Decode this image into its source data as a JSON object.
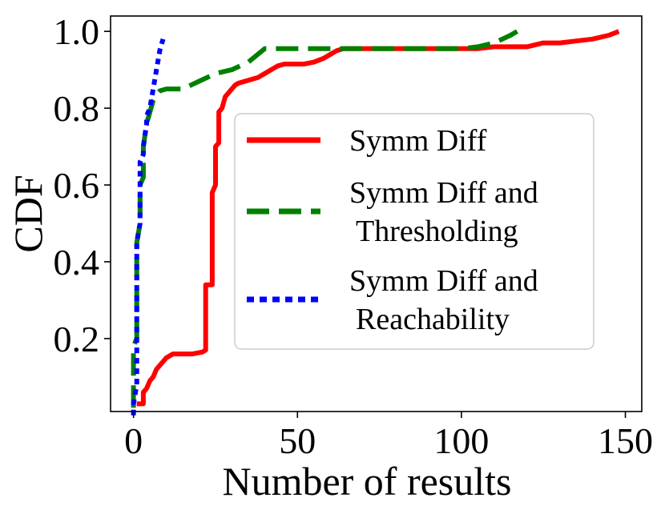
{
  "chart_data": {
    "type": "line",
    "xlabel": "Number of results",
    "ylabel": "CDF",
    "xlim": [
      -7,
      155
    ],
    "ylim": [
      0.01,
      1.04
    ],
    "xticks": [
      0,
      50,
      100,
      150
    ],
    "xtick_labels": [
      "0",
      "50",
      "100",
      "150"
    ],
    "yticks": [
      0.2,
      0.4,
      0.6,
      0.8,
      1.0
    ],
    "ytick_labels": [
      "0.2",
      "0.4",
      "0.6",
      "0.8",
      "1.0"
    ],
    "grid": false,
    "legend_position": "center-right",
    "series": [
      {
        "name": "Symm Diff",
        "color": "#ff0000",
        "style": "solid",
        "x": [
          1,
          3,
          3,
          4,
          5,
          6,
          7,
          8,
          9,
          10,
          11,
          12,
          14,
          18,
          21,
          22,
          22,
          24,
          24,
          25,
          25,
          26,
          26,
          27,
          28,
          29,
          30,
          31,
          32,
          34,
          36,
          38,
          40,
          42,
          44,
          46,
          48,
          50,
          52,
          55,
          58,
          60,
          62,
          64,
          66,
          70,
          80,
          90,
          100,
          105,
          110,
          115,
          120,
          125,
          130,
          135,
          140,
          145,
          148
        ],
        "y": [
          0.03,
          0.03,
          0.06,
          0.07,
          0.09,
          0.1,
          0.12,
          0.13,
          0.14,
          0.15,
          0.155,
          0.16,
          0.16,
          0.16,
          0.165,
          0.17,
          0.34,
          0.34,
          0.58,
          0.6,
          0.7,
          0.71,
          0.79,
          0.8,
          0.83,
          0.84,
          0.85,
          0.86,
          0.865,
          0.87,
          0.875,
          0.88,
          0.89,
          0.9,
          0.91,
          0.915,
          0.915,
          0.915,
          0.915,
          0.92,
          0.93,
          0.94,
          0.95,
          0.955,
          0.955,
          0.955,
          0.955,
          0.955,
          0.955,
          0.955,
          0.96,
          0.96,
          0.96,
          0.97,
          0.97,
          0.975,
          0.98,
          0.99,
          1.0
        ]
      },
      {
        "name": "Symm Diff and\nThresholding",
        "color": "#008000",
        "style": "dashed",
        "x": [
          0,
          0,
          1,
          1,
          2,
          2,
          3,
          3,
          4,
          5,
          6,
          7,
          8,
          10,
          15,
          20,
          25,
          30,
          35,
          40,
          60,
          80,
          100,
          105,
          110,
          115,
          117
        ],
        "y": [
          0.02,
          0.18,
          0.2,
          0.45,
          0.5,
          0.6,
          0.62,
          0.7,
          0.76,
          0.79,
          0.82,
          0.835,
          0.845,
          0.85,
          0.85,
          0.87,
          0.89,
          0.9,
          0.92,
          0.955,
          0.955,
          0.955,
          0.955,
          0.96,
          0.97,
          0.99,
          1.0
        ]
      },
      {
        "name": "Symm Diff and\nReachability",
        "color": "#0000ff",
        "style": "dotted",
        "x": [
          0,
          0,
          1,
          1,
          2,
          2,
          3,
          3,
          4,
          4,
          5,
          6,
          7,
          8,
          9
        ],
        "y": [
          0.0,
          0.03,
          0.08,
          0.45,
          0.5,
          0.66,
          0.68,
          0.7,
          0.76,
          0.78,
          0.8,
          0.85,
          0.9,
          0.95,
          0.98
        ]
      }
    ]
  }
}
